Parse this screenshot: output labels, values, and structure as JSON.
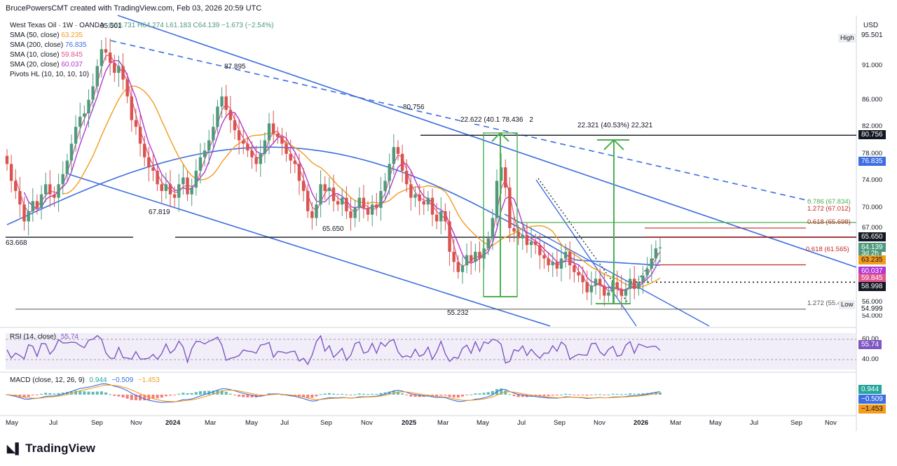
{
  "header": {
    "attribution": "BrucePowersCMT created with TradingView.com, Feb 03, 2026 20:59 UTC"
  },
  "currency": "USD",
  "instrument": {
    "title": "West Texas Oil · 1W · OANDA",
    "ohlc": "O63.731 H64.274 L61.183 C64.139 −1.673 (−2.54%)"
  },
  "indicators": [
    {
      "label": "SMA (50, close)",
      "value": "63.235",
      "color": "#f29b1e"
    },
    {
      "label": "SMA (200, close)",
      "value": "76.835",
      "color": "#3d6ee0"
    },
    {
      "label": "SMA (10, close)",
      "value": "59.845",
      "color": "#e0558f"
    },
    {
      "label": "SMA (20, close)",
      "value": "60.037",
      "color": "#b236d6"
    },
    {
      "label": "Pivots HL (10, 10, 10, 10)",
      "value": "",
      "color": "#131722"
    }
  ],
  "price_axis": {
    "ticks": [
      "91.000",
      "86.000",
      "82.000",
      "78.000",
      "74.000",
      "70.000",
      "67.000",
      "56.000",
      "54.000"
    ],
    "labels": [
      {
        "text": "95.501",
        "bg": "#ffffff",
        "fg": "#131722",
        "price": 95.501
      },
      {
        "text": "80.756",
        "bg": "#131722",
        "fg": "#ffffff",
        "price": 80.756
      },
      {
        "text": "76.835",
        "bg": "#3d6ee0",
        "fg": "#ffffff",
        "price": 76.835
      },
      {
        "text": "65.650",
        "bg": "#131722",
        "fg": "#ffffff",
        "price": 65.65
      },
      {
        "text": "64.139",
        "bg": "#4f9a7d",
        "fg": "#ffffff",
        "price": 64.139
      },
      {
        "text": "3d 2h",
        "bg": "#4f9a7d",
        "fg": "#ffffff",
        "price": 63.2
      },
      {
        "text": "63.235",
        "bg": "#f29b1e",
        "fg": "#131722",
        "price": 62.25
      },
      {
        "text": "60.037",
        "bg": "#b236d6",
        "fg": "#ffffff",
        "price": 60.6
      },
      {
        "text": "59.845",
        "bg": "#e0558f",
        "fg": "#ffffff",
        "price": 59.55
      },
      {
        "text": "58.998",
        "bg": "#131722",
        "fg": "#ffffff",
        "price": 58.35
      },
      {
        "text": "54.999",
        "bg": "#ffffff",
        "fg": "#131722",
        "price": 55.0
      }
    ],
    "high_label": "High",
    "low_label": "Low"
  },
  "annotations": {
    "pivots": [
      "95.501",
      "87.895",
      "80.756",
      "67.819",
      "65.650",
      "63.668",
      "55.232"
    ],
    "measure1": "22.622 (40.1",
    "measure1b": "78.436",
    "measure1c": "2",
    "measure2": "22.321 (40.53%) 22,321",
    "fib1": "0.786 (67.834)",
    "fib2": "1.272 (67.012)",
    "fib3": "0.618 (65.698)",
    "fib4": "0.618 (61.565)",
    "fib5": "1.272 (55.4"
  },
  "rsi": {
    "title": "RSI (14, close)",
    "value": "55.74",
    "ticks": [
      "60.00",
      "40.00"
    ]
  },
  "macd": {
    "title": "MACD (close, 12, 26, 9)",
    "values": [
      "0.944",
      "−0.509",
      "−1.453"
    ],
    "axis_labels": [
      "0.944",
      "−0.509",
      "−1.453"
    ]
  },
  "time_axis": [
    "May",
    "Jul",
    "Sep",
    "Nov",
    "2024",
    "Mar",
    "May",
    "Jul",
    "Sep",
    "Nov",
    "2025",
    "Mar",
    "May",
    "Jul",
    "Sep",
    "Nov",
    "2026",
    "Mar",
    "May",
    "Jul",
    "Sep",
    "Nov"
  ],
  "logo_text": "TradingView",
  "colors": {
    "up": "#4f9a7d",
    "down": "#d9534f",
    "trend": "#3d6ee0",
    "fibgreen": "#4caf50",
    "fibred": "#c62828"
  },
  "chart_data": {
    "type": "candlestick",
    "title": "West Texas Oil · 1W · OANDA",
    "x_axis_ticks": [
      "May",
      "Jul",
      "Sep",
      "Nov",
      "2024",
      "Mar",
      "May",
      "Jul",
      "Sep",
      "Nov",
      "2025",
      "Mar",
      "May",
      "Jul",
      "Sep",
      "Nov",
      "2026",
      "Mar",
      "May",
      "Jul",
      "Sep",
      "Nov"
    ],
    "ylim": [
      52.5,
      98.5
    ],
    "last": {
      "open": 63.731,
      "high": 64.274,
      "low": 61.183,
      "close": 64.139
    },
    "closes": [
      76.5,
      74.0,
      72.5,
      70.5,
      68.0,
      69.5,
      71.0,
      70.0,
      72.0,
      73.5,
      72.0,
      71.5,
      73.5,
      75.0,
      77.0,
      79.5,
      82.0,
      83.5,
      84.0,
      86.0,
      88.0,
      91.0,
      93.5,
      93.0,
      91.5,
      90.0,
      91.0,
      89.0,
      86.5,
      83.0,
      82.0,
      79.5,
      77.5,
      76.0,
      75.5,
      73.5,
      72.5,
      73.5,
      72.0,
      71.5,
      73.5,
      74.5,
      72.0,
      73.0,
      75.5,
      77.5,
      78.5,
      80.0,
      82.0,
      85.0,
      86.5,
      84.5,
      83.0,
      81.5,
      80.0,
      79.5,
      78.5,
      77.5,
      76.5,
      78.0,
      80.0,
      82.5,
      81.0,
      80.5,
      79.5,
      78.0,
      77.0,
      76.5,
      74.0,
      72.5,
      69.5,
      68.5,
      70.5,
      73.5,
      72.5,
      73.0,
      71.0,
      70.5,
      71.5,
      69.5,
      68.5,
      70.0,
      71.5,
      70.0,
      69.0,
      70.5,
      70.0,
      72.5,
      74.0,
      76.5,
      79.0,
      78.0,
      75.5,
      73.5,
      71.5,
      72.0,
      71.0,
      70.5,
      71.5,
      69.0,
      68.0,
      69.5,
      68.0,
      63.5,
      62.0,
      60.5,
      61.5,
      63.0,
      62.0,
      63.5,
      62.5,
      64.0,
      65.5,
      68.5,
      74.0,
      76.0,
      73.0,
      67.0,
      66.5,
      65.5,
      66.0,
      64.5,
      65.0,
      64.5,
      63.0,
      62.5,
      61.5,
      62.0,
      61.0,
      62.5,
      63.5,
      61.5,
      60.5,
      60.0,
      59.0,
      57.5,
      58.5,
      59.5,
      58.5,
      57.0,
      57.5,
      59.0,
      58.0,
      57.0,
      58.0,
      59.5,
      58.0,
      59.0,
      60.0,
      61.0,
      62.5,
      64.0,
      64.139
    ],
    "sma_50": {
      "name": "SMA (50, close)",
      "last": 63.235
    },
    "sma_200": {
      "name": "SMA (200, close)",
      "last": 76.835
    },
    "sma_10": {
      "name": "SMA (10, close)",
      "last": 59.845
    },
    "sma_20": {
      "name": "SMA (20, close)",
      "last": 60.037
    },
    "horizontal_levels": [
      80.756,
      65.65,
      58.998,
      54.999,
      67.834,
      67.012,
      65.698,
      61.565
    ],
    "pivot_highs": [
      95.501,
      87.895,
      80.756,
      67.819
    ],
    "pivot_lows": [
      63.668,
      65.65,
      55.232
    ]
  }
}
